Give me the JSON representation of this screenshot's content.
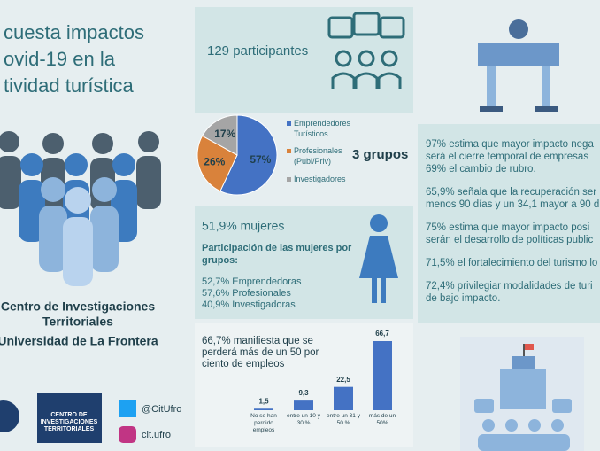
{
  "title_lines": [
    "cuesta impactos",
    "ovid-19 en la",
    "tividad turística"
  ],
  "participants": "129 participantes",
  "groups": "3 grupos",
  "pie_chart": {
    "type": "pie",
    "categories": [
      "Emprendedores Turísticos",
      "Profesionales (Publ/Priv)",
      "Investigadores"
    ],
    "values": [
      57,
      26,
      17
    ],
    "value_labels": [
      "57%",
      "26%",
      "17%"
    ],
    "colors": [
      "#4472c4",
      "#d9823b",
      "#a5a5a5"
    ]
  },
  "women": {
    "headline": "51,9% mujeres",
    "intro": [
      "Participación de las mujeres por",
      "grupos:"
    ],
    "items": [
      "52,7% Emprendedoras",
      "57,6% Profesionales",
      "40,9% Investigadoras"
    ]
  },
  "findings": [
    "97% estima que mayor impacto nega",
    "será el cierre temporal de empresas",
    "69% el cambio de rubro.",
    "65,9% señala que la recuperación ser",
    "menos 90 días y un 34,1 mayor a 90 d",
    "75%  estima que mayor impacto posi",
    "serán el desarrollo de políticas public",
    "71,5% el fortalecimiento del turismo lo",
    "72,4% privilegiar modalidades de turi",
    "de bajo impacto."
  ],
  "bar_chart": {
    "type": "bar",
    "title_lines": [
      "66,7% manifiesta que se",
      "perderá más de un 50 por",
      "ciento de empleos"
    ],
    "categories": [
      "No se han perdido empleos",
      "entre un 10 y 30 %",
      "entre un 31 y 50 %",
      "más de un 50%"
    ],
    "values": [
      1.5,
      9.3,
      22.5,
      66.7
    ],
    "value_labels": [
      "1,5",
      "9,3",
      "22,5",
      "66,7"
    ],
    "color": "#4472c4"
  },
  "organization": [
    "Centro de Investigaciones",
    "Territoriales",
    "Universidad de La Frontera"
  ],
  "logo_text": [
    "CENTRO DE",
    "INVESTIGACIONES",
    "TERRITORIALES"
  ],
  "social": [
    "@CitUfro",
    "cit.ufro"
  ]
}
